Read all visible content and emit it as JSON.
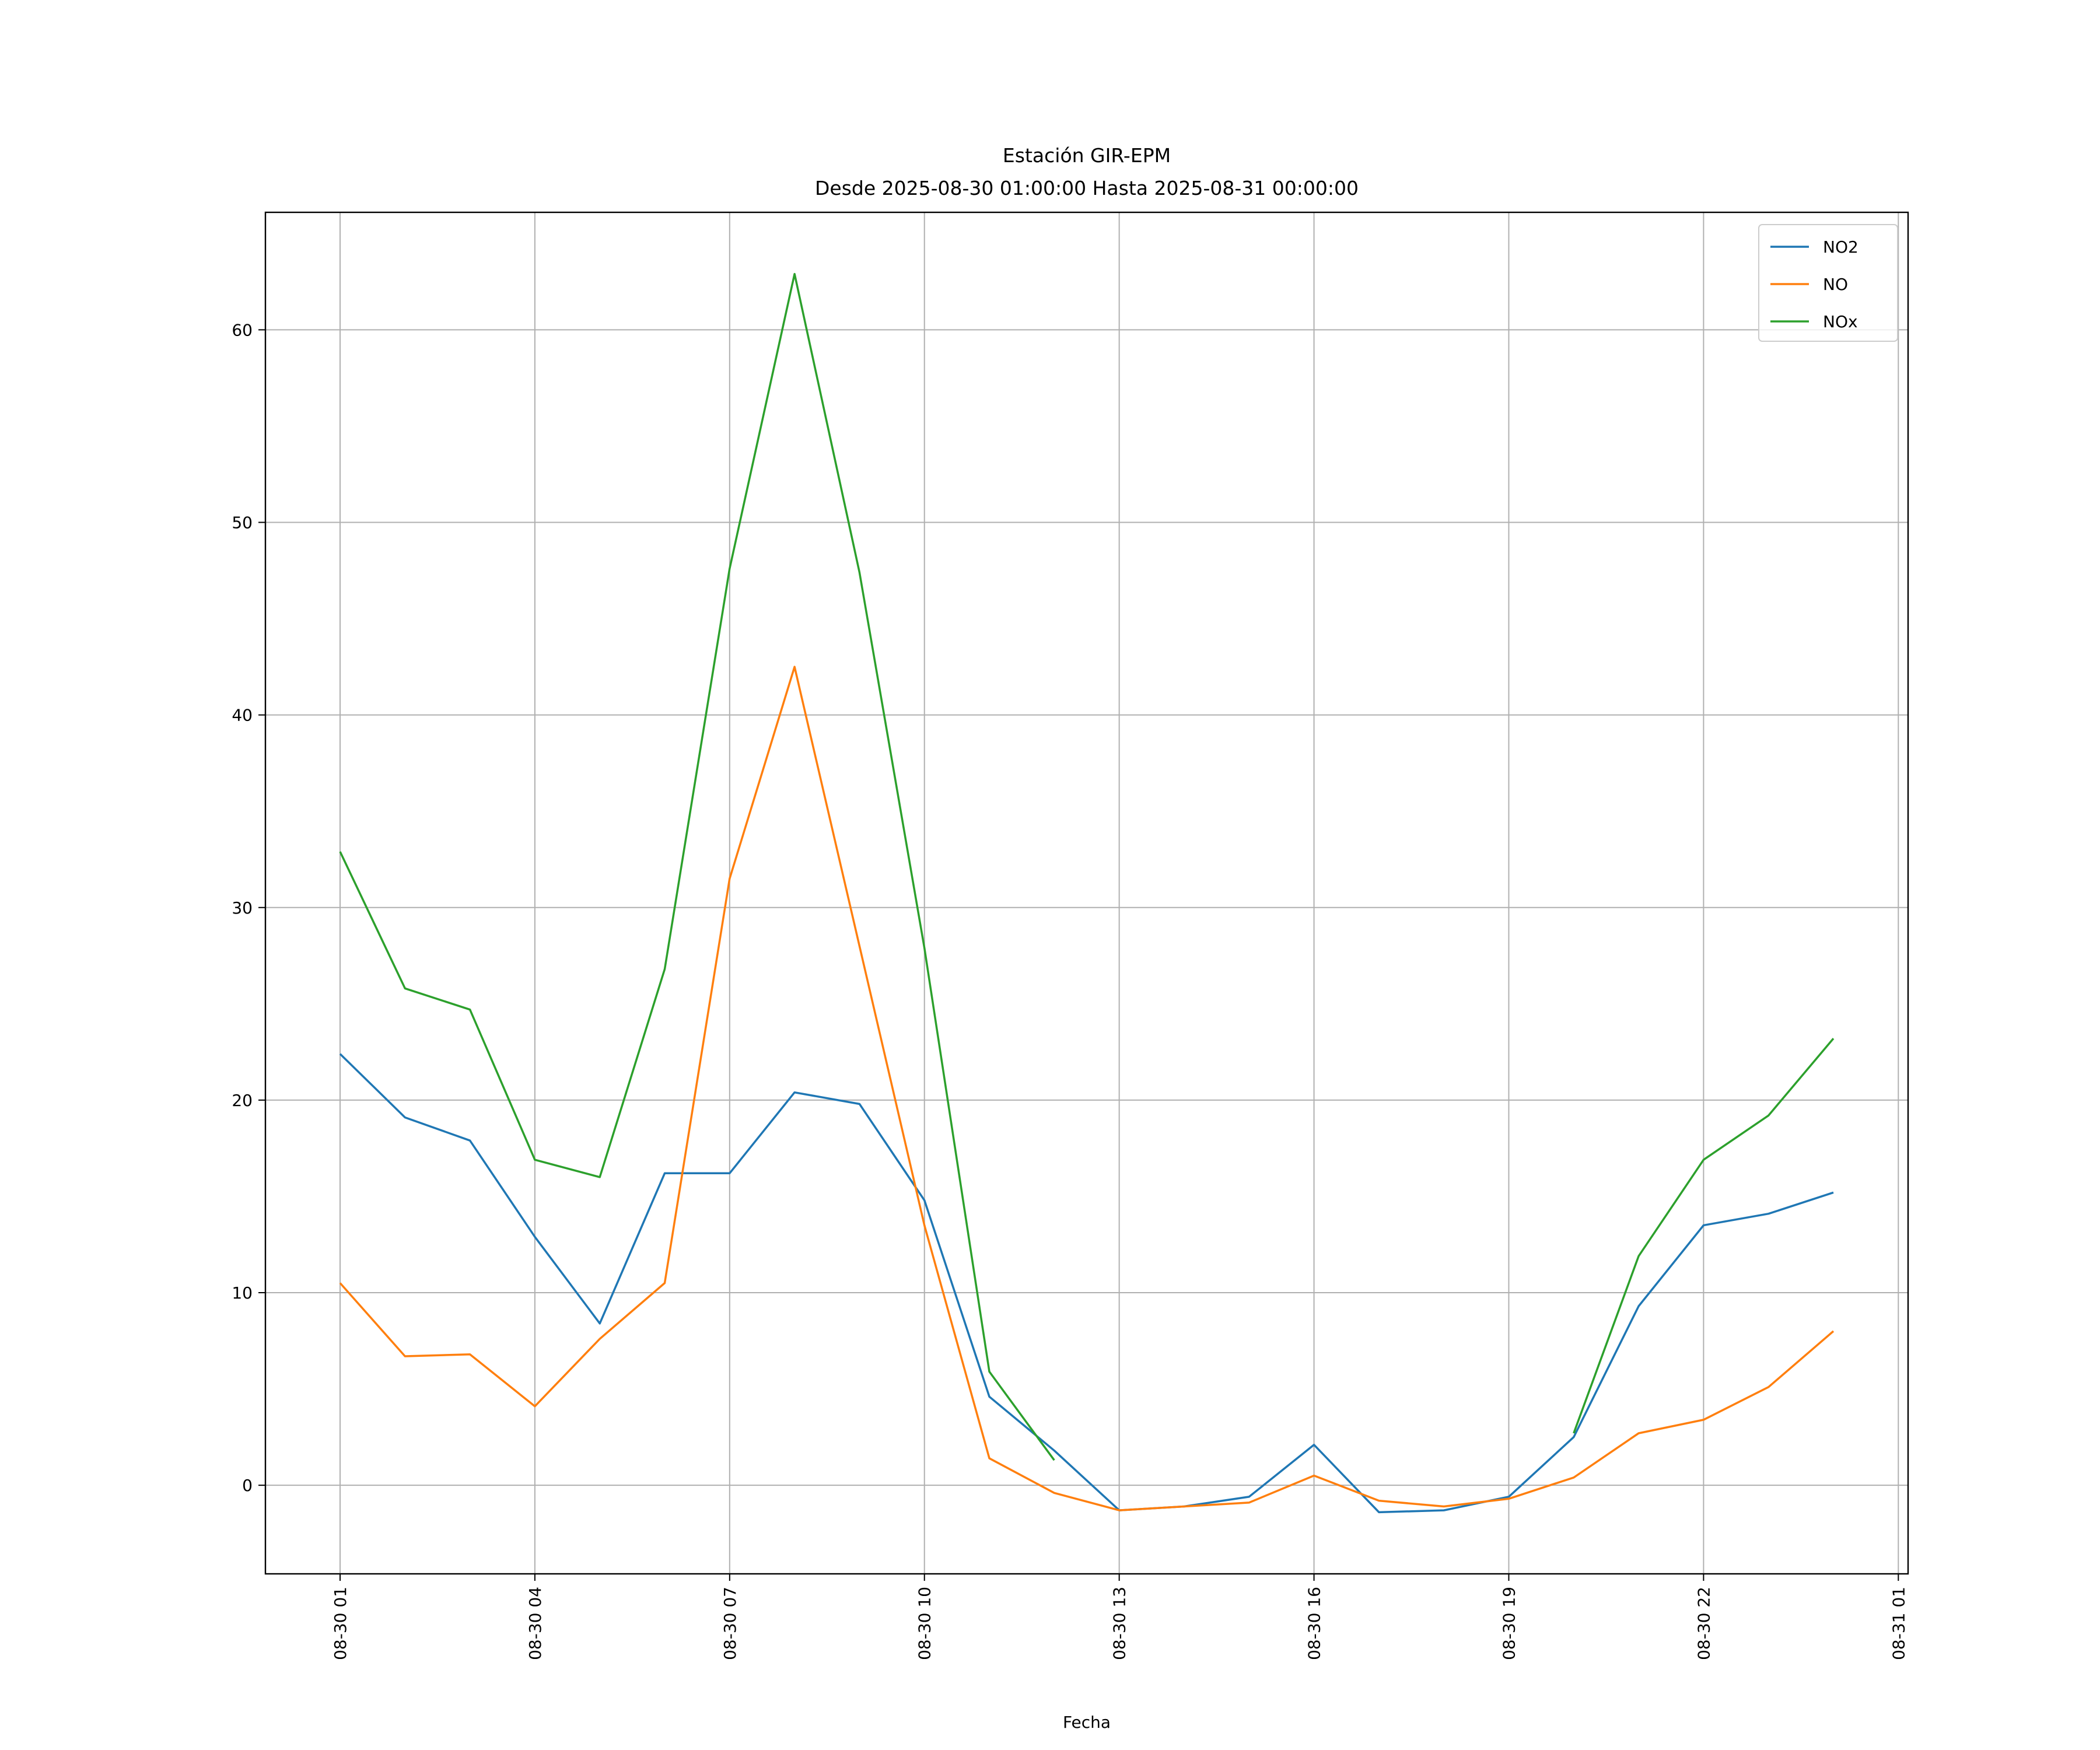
{
  "chart_data": {
    "type": "line",
    "title": "Estación GIR-EPM",
    "subtitle": "Desde 2025-08-30 01:00:00 Hasta 2025-08-31 00:00:00",
    "xlabel": "Fecha",
    "ylabel": "",
    "x_hours": [
      1,
      2,
      3,
      4,
      5,
      6,
      7,
      8,
      9,
      10,
      11,
      12,
      13,
      14,
      15,
      16,
      17,
      18,
      19,
      20,
      21,
      22,
      23,
      24
    ],
    "x_labels": [
      "2025-08-30 01:00",
      "2025-08-30 02:00",
      "2025-08-30 03:00",
      "2025-08-30 04:00",
      "2025-08-30 05:00",
      "2025-08-30 06:00",
      "2025-08-30 07:00",
      "2025-08-30 08:00",
      "2025-08-30 09:00",
      "2025-08-30 10:00",
      "2025-08-30 11:00",
      "2025-08-30 12:00",
      "2025-08-30 13:00",
      "2025-08-30 14:00",
      "2025-08-30 15:00",
      "2025-08-30 16:00",
      "2025-08-30 17:00",
      "2025-08-30 18:00",
      "2025-08-30 19:00",
      "2025-08-30 20:00",
      "2025-08-30 21:00",
      "2025-08-30 22:00",
      "2025-08-30 23:00",
      "2025-08-31 00:00"
    ],
    "series": [
      {
        "name": "NO2",
        "color": "#1f77b4",
        "values": [
          22.4,
          19.1,
          17.9,
          12.9,
          8.4,
          16.2,
          16.2,
          20.4,
          19.8,
          14.8,
          4.6,
          1.8,
          -1.3,
          -1.1,
          -0.6,
          2.1,
          -1.4,
          -1.3,
          -0.6,
          2.5,
          9.3,
          13.5,
          14.1,
          15.2
        ]
      },
      {
        "name": "NO",
        "color": "#ff7f0e",
        "values": [
          10.5,
          6.7,
          6.8,
          4.1,
          7.6,
          10.5,
          31.5,
          42.5,
          28.0,
          13.5,
          1.4,
          -0.4,
          -1.3,
          -1.1,
          -0.9,
          0.5,
          -0.8,
          -1.1,
          -0.7,
          0.4,
          2.7,
          3.4,
          5.1,
          8.0
        ]
      },
      {
        "name": "NOx",
        "color": "#2ca02c",
        "values": [
          32.9,
          25.8,
          24.7,
          16.9,
          16.0,
          26.8,
          47.6,
          62.9,
          47.4,
          27.9,
          5.9,
          1.3,
          null,
          null,
          null,
          null,
          null,
          null,
          null,
          2.7,
          11.9,
          16.9,
          19.2,
          23.2
        ]
      }
    ],
    "xlim_hours": [
      -0.15,
      25.15
    ],
    "ylim": [
      -4.6,
      66.1
    ],
    "x_ticks": [
      {
        "hour": 1,
        "label": "08-30 01"
      },
      {
        "hour": 4,
        "label": "08-30 04"
      },
      {
        "hour": 7,
        "label": "08-30 07"
      },
      {
        "hour": 10,
        "label": "08-30 10"
      },
      {
        "hour": 13,
        "label": "08-30 13"
      },
      {
        "hour": 16,
        "label": "08-30 16"
      },
      {
        "hour": 19,
        "label": "08-30 19"
      },
      {
        "hour": 22,
        "label": "08-30 22"
      },
      {
        "hour": 25,
        "label": "08-31 01"
      }
    ],
    "y_ticks": [
      0,
      10,
      20,
      30,
      40,
      50,
      60
    ],
    "grid": true,
    "legend_position": "top-right"
  }
}
